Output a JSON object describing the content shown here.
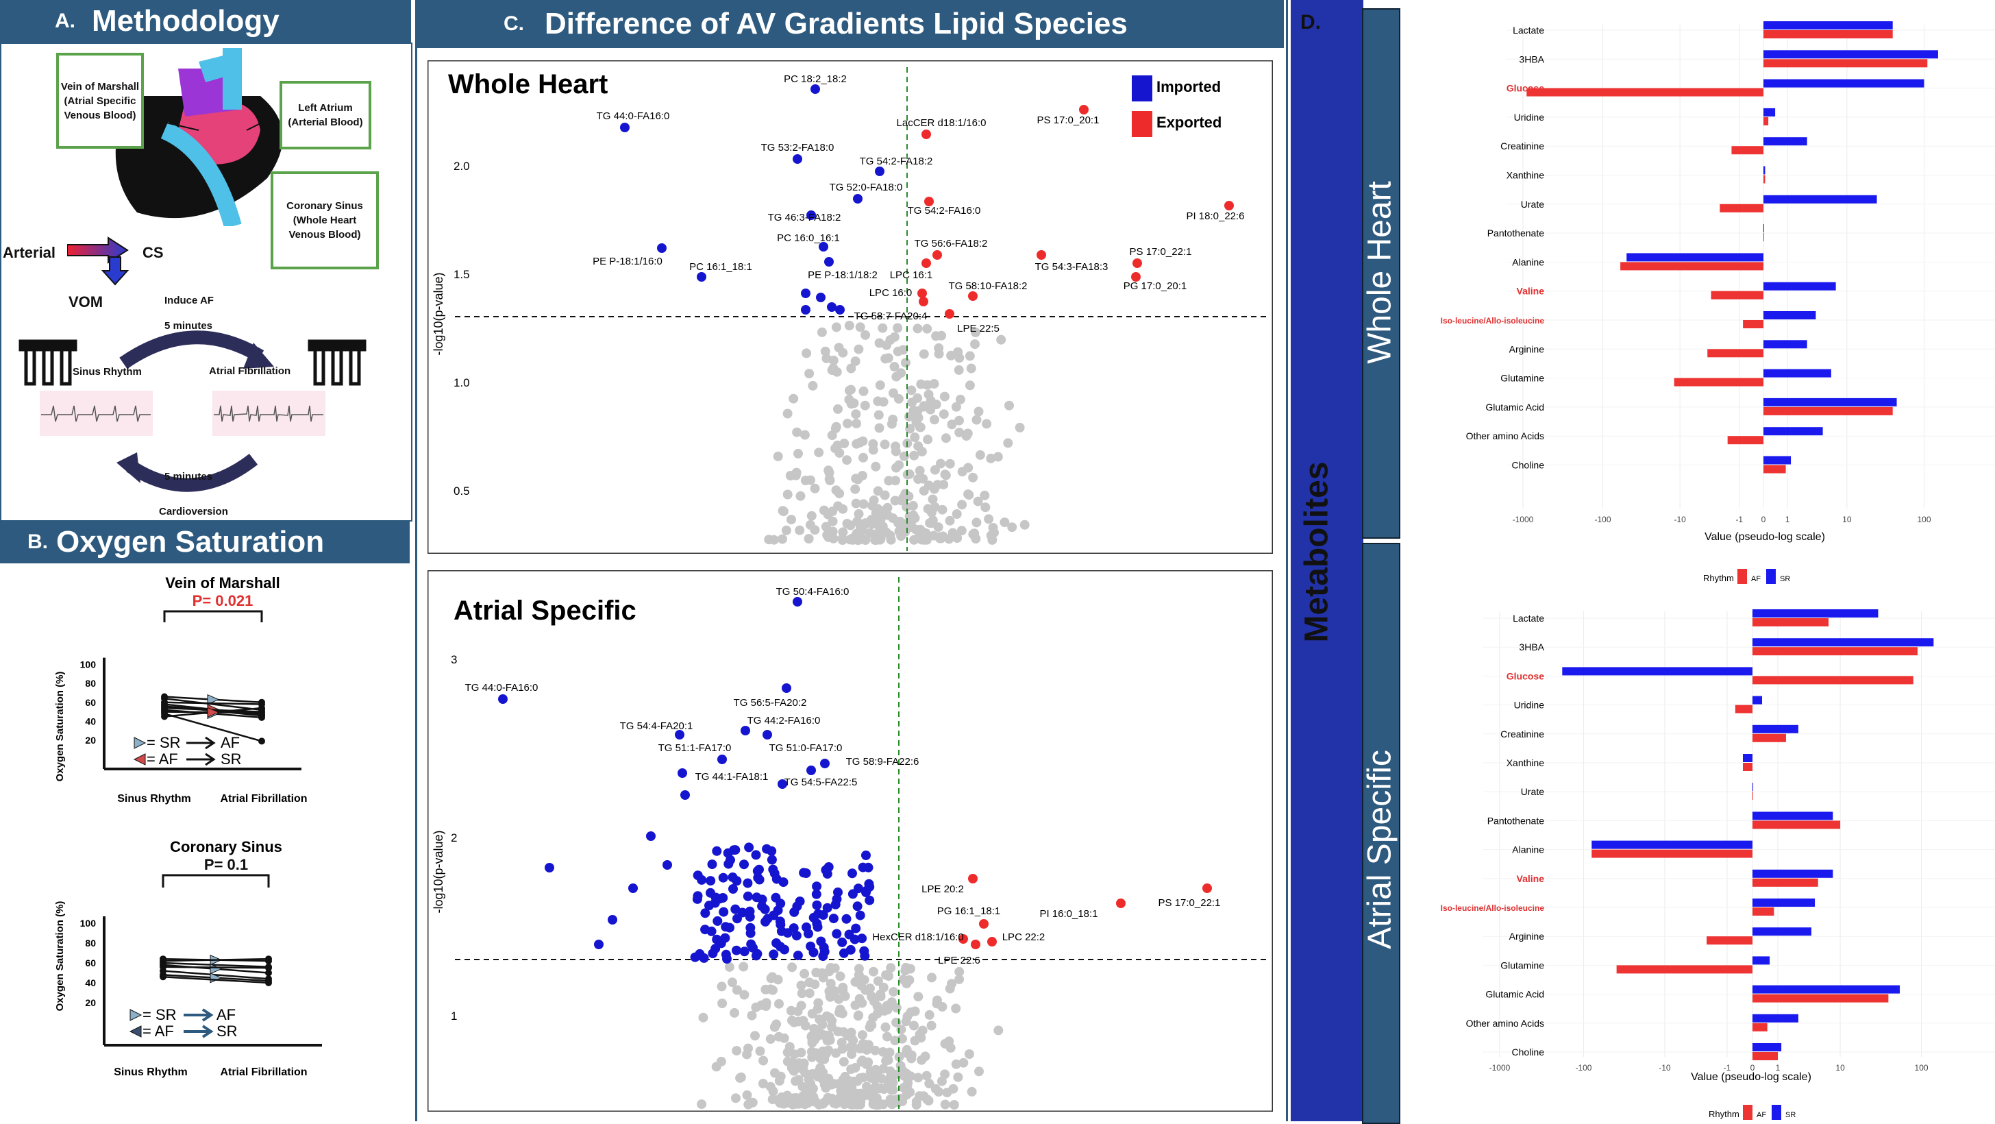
{
  "panelA": {
    "letter": "A.",
    "title": "Methodology",
    "boxes": {
      "vom": "Vein of Marshall (Atrial Specific Venous Blood)",
      "la": "Left Atrium (Arterial Blood)",
      "cs": "Coronary Sinus (Whole Heart Venous Blood)"
    },
    "arterial": "Arterial",
    "cs_short": "CS",
    "vom_short": "VOM",
    "induce_af": "Induce AF",
    "five_min_top": "5 minutes",
    "sinus_rhythm": "Sinus Rhythm",
    "atrial_fib": "Atrial Fibrillation",
    "five_min_bottom": "5 minutes",
    "cardioversion": "Cardioversion"
  },
  "panelB": {
    "letter": "B.",
    "title": "Oxygen Saturation",
    "charts": [
      {
        "title": "Vein of Marshall",
        "pvalue": "P= 0.021",
        "pcolor": "#e03030",
        "ylabel": "Oxygen Saturation (%)",
        "yticks": [
          "100",
          "80",
          "60",
          "40",
          "20"
        ],
        "xticks": [
          "Sinus Rhythm",
          "Atrial Fibrillation"
        ],
        "legend": [
          "= SR",
          "= AF",
          "AF",
          "SR"
        ],
        "pairs": [
          [
            66,
            60
          ],
          [
            64,
            52
          ],
          [
            60,
            58
          ],
          [
            58,
            47
          ],
          [
            56,
            46
          ],
          [
            54,
            50
          ],
          [
            52,
            44
          ],
          [
            50,
            49
          ],
          [
            48,
            19
          ],
          [
            45,
            54
          ]
        ]
      },
      {
        "title": "Coronary Sinus",
        "pvalue": "P= 0.1",
        "pcolor": "#111111",
        "ylabel": "Oxygen Saturation (%)",
        "yticks": [
          "100",
          "80",
          "60",
          "40",
          "20"
        ],
        "xticks": [
          "Sinus Rhythm",
          "Atrial Fibrillation"
        ],
        "legend": [
          "= SR",
          "= AF",
          "AF",
          "SR"
        ],
        "pairs": [
          [
            64,
            62
          ],
          [
            62,
            64
          ],
          [
            60,
            56
          ],
          [
            58,
            50
          ],
          [
            56,
            55
          ],
          [
            52,
            44
          ],
          [
            48,
            42
          ],
          [
            46,
            40
          ]
        ]
      }
    ]
  },
  "panelC": {
    "letter": "C.",
    "title": "Difference of AV Gradients Lipid Species",
    "legend": {
      "imported": "Imported",
      "exported": "Exported",
      "imported_color": "#1515d0",
      "exported_color": "#ee2b2b"
    },
    "whole": {
      "title": "Whole Heart",
      "ylabel": "-log10(p-value)",
      "yticks": [
        "2.0",
        "1.5",
        "1.0",
        "0.5"
      ],
      "labels": [
        "PC 18:2_18:2",
        "TG 44:0-FA16:0",
        "LacCER d18:1/16:0",
        "PS 17:0_20:1",
        "TG 53:2-FA18:0",
        "TG 54:2-FA18:2",
        "TG 52:0-FA18:0",
        "TG 46:3-FA18:2",
        "TG 54:2-FA16:0",
        "PI 18:0_22:6",
        "PC 16:0_16:1",
        "TG 56:6-FA18:2",
        "PE P-18:1/16:0",
        "PC 16:1_18:1",
        "PE P-18:1/18:2",
        "LPC 16:1",
        "TG 54:3-FA18:3",
        "PS 17:0_22:1",
        "PG 17:0_20:1",
        "LPC 16:0",
        "TG 58:10-FA18:2",
        "TG 58:7-FA20:4",
        "LPE 22:5"
      ]
    },
    "atrial": {
      "title": "Atrial Specific",
      "ylabel": "-log10(p-value)",
      "yticks": [
        "3",
        "2",
        "1"
      ],
      "labels": [
        "TG 50:4-FA16:0",
        "TG 44:0-FA16:0",
        "TG 56:5-FA20:2",
        "TG 54:4-FA20:1",
        "TG 44:2-FA16:0",
        "TG 51:1-FA17:0",
        "TG 51:0-FA17:0",
        "TG 58:9-FA22:6",
        "TG 44:1-FA18:1",
        "TG 54:5-FA22:5",
        "LPE 20:2",
        "PG 16:1_18:1",
        "PI 16:0_18:1",
        "PS 17:0_22:1",
        "HexCER d18:1/16:0",
        "LPC 22:2",
        "LPE 22:6"
      ]
    }
  },
  "panelD": {
    "letter": "D.",
    "side_label": "Metabolites",
    "whole_label": "Whole Heart",
    "atrial_label": "Atrial Specific",
    "highlight_color": "#e03030",
    "xlabel": "Value (pseudo-log scale)",
    "xticks": [
      "-1000",
      "-100",
      "-10",
      "-1",
      "0",
      "1",
      "10",
      "100"
    ],
    "legend_title": "Rhythm",
    "legend_af": "AF",
    "legend_sr": "SR",
    "af_color": "#ee3333",
    "sr_color": "#1a1aee",
    "whole": {
      "metabolites": [
        "Lactate",
        "3HBA",
        "Glucose",
        "Uridine",
        "Creatinine",
        "Xanthine",
        "Urate",
        "Pantothenate",
        "Alanine",
        "Valine",
        "Iso-leucine/Allo-isoleucine",
        "Arginine",
        "Glutamine",
        "Glutamic Acid",
        "Other amino Acids",
        "Choline"
      ],
      "highlight": [
        false,
        false,
        true,
        false,
        false,
        false,
        false,
        false,
        false,
        true,
        true,
        false,
        false,
        false,
        false,
        false
      ],
      "sr": [
        40,
        150,
        100,
        0.4,
        2.5,
        0.05,
        25,
        0.02,
        -50,
        7,
        3.5,
        2.5,
        6,
        45,
        4.5,
        1.2
      ],
      "af": [
        40,
        110,
        -900,
        0.15,
        -1.5,
        0.05,
        -2.5,
        0,
        -60,
        -3.5,
        -0.8,
        -4,
        -12,
        40,
        -1.8,
        0.9
      ]
    },
    "atrial": {
      "metabolites": [
        "Lactate",
        "3HBA",
        "Glucose",
        "Uridine",
        "Creatinine",
        "Xanthine",
        "Urate",
        "Pantothenate",
        "Alanine",
        "Valine",
        "Iso-leucine/Allo-isoleucine",
        "Arginine",
        "Glutamine",
        "Glutamic Acid",
        "Other amino Acids",
        "Choline"
      ],
      "highlight": [
        false,
        false,
        true,
        false,
        false,
        false,
        false,
        false,
        false,
        true,
        true,
        false,
        false,
        false,
        false,
        false
      ],
      "sr": [
        30,
        140,
        -180,
        0.3,
        2.5,
        -0.3,
        0.02,
        8,
        -80,
        8,
        4.5,
        4,
        0.6,
        55,
        2.5,
        1.2
      ],
      "af": [
        7,
        90,
        80,
        -0.6,
        1.5,
        -0.3,
        0,
        10,
        -80,
        5,
        0.8,
        -2.5,
        -40,
        40,
        0.5,
        1
      ]
    }
  }
}
